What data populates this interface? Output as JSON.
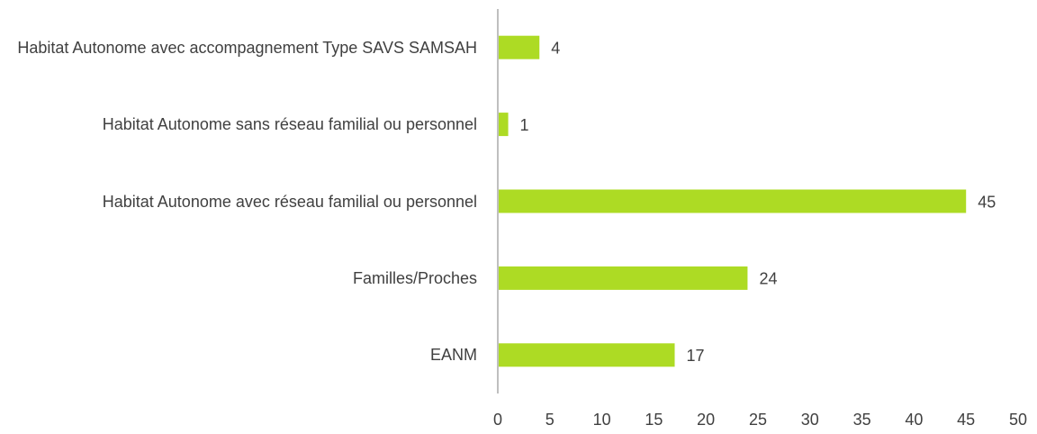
{
  "chart_data": {
    "type": "bar",
    "orientation": "horizontal",
    "categories": [
      "Habitat Autonome avec accompagnement Type SAVS SAMSAH",
      "Habitat Autonome sans réseau familial ou personnel",
      "Habitat Autonome avec réseau familial ou personnel",
      "Familles/Proches",
      "EANM"
    ],
    "values": [
      4,
      1,
      45,
      24,
      17
    ],
    "color": "#addb24",
    "xlim": [
      0,
      50
    ],
    "xticks": [
      0,
      5,
      10,
      15,
      20,
      25,
      30,
      35,
      40,
      45,
      50
    ],
    "grid": false
  }
}
